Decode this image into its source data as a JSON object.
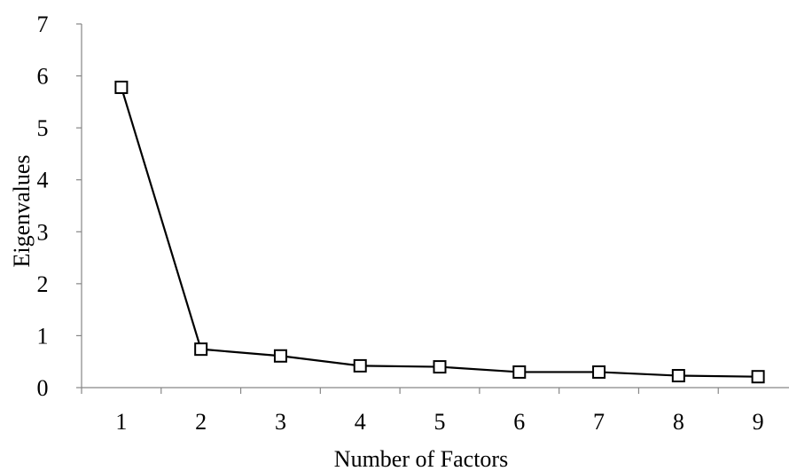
{
  "chart_data": {
    "type": "line",
    "title": "",
    "xlabel": "Number of Factors",
    "ylabel": "Eigenvalues",
    "x": [
      1,
      2,
      3,
      4,
      5,
      6,
      7,
      8,
      9
    ],
    "ylim": [
      0,
      7
    ],
    "yticks": [
      0,
      1,
      2,
      3,
      4,
      5,
      6,
      7
    ],
    "grid": false,
    "legend": "none",
    "series": [
      {
        "values": [
          5.78,
          0.74,
          0.61,
          0.42,
          0.4,
          0.3,
          0.3,
          0.23,
          0.21
        ]
      }
    ],
    "colors": {
      "line": "#000000",
      "marker_fill": "#ffffff",
      "axis": "#868686"
    }
  }
}
